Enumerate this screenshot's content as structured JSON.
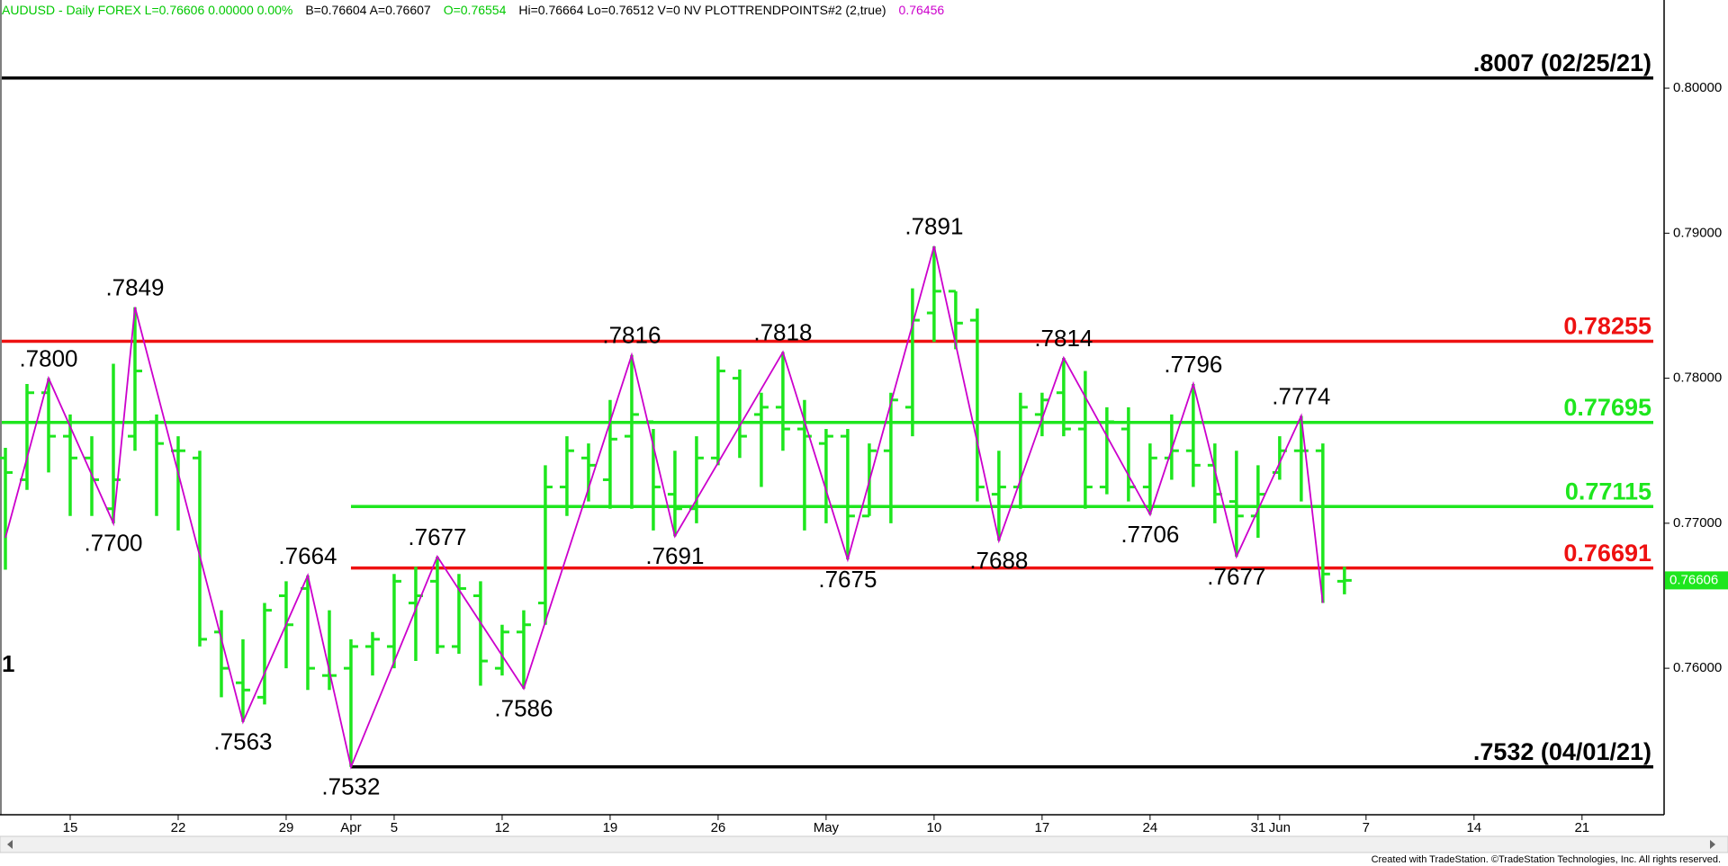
{
  "header": [
    {
      "text": "AUDUSD - Daily  FOREX  L=0.76606  0.00000   0.00%",
      "color": "#00c800"
    },
    {
      "text": "B=0.76604  A=0.76607",
      "color": "#000000"
    },
    {
      "text": "O=0.76554",
      "color": "#00c800"
    },
    {
      "text": "Hi=0.76664  Lo=0.76512  V=0  NV  PLOTTRENDPOINTS#2 (2,true)",
      "color": "#000000"
    },
    {
      "text": "0.76456",
      "color": "#cc00cc"
    }
  ],
  "chart_data": {
    "type": "ohlc",
    "color": "#1ee61e",
    "x": [
      0,
      1,
      2,
      3,
      4,
      5,
      6,
      7,
      8,
      9,
      10,
      11,
      12,
      13,
      14,
      15,
      16,
      17,
      18,
      19,
      20,
      21,
      22,
      23,
      24,
      25,
      26,
      27,
      28,
      29,
      30,
      31,
      32,
      33,
      34,
      35,
      36,
      37,
      38,
      39,
      40,
      41,
      42,
      43,
      44,
      45,
      46,
      47,
      48,
      49,
      50,
      51,
      52,
      53,
      54,
      55,
      56,
      57,
      58,
      59,
      60,
      61,
      62
    ],
    "open": [
      0.7745,
      0.773,
      0.779,
      0.776,
      0.7745,
      0.771,
      0.776,
      0.777,
      0.775,
      0.7745,
      0.7625,
      0.759,
      0.758,
      0.765,
      0.7655,
      0.7595,
      0.76,
      0.7615,
      0.7615,
      0.7645,
      0.766,
      0.7615,
      0.765,
      0.76,
      0.7625,
      0.7645,
      0.7725,
      0.7745,
      0.773,
      0.776,
      0.777,
      0.772,
      0.771,
      0.7745,
      0.78,
      0.7775,
      0.778,
      0.7765,
      0.7755,
      0.776,
      0.7705,
      0.775,
      0.778,
      0.7845,
      0.786,
      0.784,
      0.772,
      0.7725,
      0.7775,
      0.779,
      0.7765,
      0.7725,
      0.7765,
      0.7725,
      0.7745,
      0.775,
      0.774,
      0.7715,
      0.7705,
      0.7735,
      0.775,
      0.775,
      0.766
    ],
    "high": [
      0.7752,
      0.7796,
      0.78,
      0.7775,
      0.776,
      0.781,
      0.7849,
      0.7775,
      0.776,
      0.775,
      0.764,
      0.762,
      0.7645,
      0.766,
      0.7664,
      0.764,
      0.762,
      0.7625,
      0.7665,
      0.767,
      0.7677,
      0.7665,
      0.766,
      0.763,
      0.764,
      0.774,
      0.776,
      0.7755,
      0.7785,
      0.7816,
      0.7765,
      0.775,
      0.776,
      0.7815,
      0.7806,
      0.779,
      0.7818,
      0.7785,
      0.7765,
      0.7765,
      0.7755,
      0.779,
      0.7862,
      0.7891,
      0.786,
      0.7848,
      0.775,
      0.779,
      0.779,
      0.7814,
      0.7805,
      0.778,
      0.778,
      0.7755,
      0.7775,
      0.7796,
      0.7755,
      0.775,
      0.774,
      0.776,
      0.7774,
      0.7755,
      0.767
    ],
    "low": [
      0.7668,
      0.7723,
      0.7735,
      0.7705,
      0.7705,
      0.77,
      0.775,
      0.7705,
      0.7695,
      0.7615,
      0.758,
      0.7563,
      0.7575,
      0.76,
      0.7585,
      0.7585,
      0.7532,
      0.7595,
      0.76,
      0.7605,
      0.761,
      0.761,
      0.7588,
      0.7595,
      0.7586,
      0.763,
      0.7705,
      0.7715,
      0.771,
      0.771,
      0.7695,
      0.7691,
      0.77,
      0.774,
      0.7745,
      0.7725,
      0.775,
      0.7695,
      0.77,
      0.7675,
      0.7705,
      0.77,
      0.776,
      0.7825,
      0.782,
      0.7715,
      0.7688,
      0.771,
      0.776,
      0.776,
      0.771,
      0.772,
      0.7715,
      0.7706,
      0.773,
      0.7725,
      0.77,
      0.7677,
      0.769,
      0.773,
      0.7715,
      0.7645,
      0.7651
    ],
    "close": [
      0.7735,
      0.779,
      0.776,
      0.7745,
      0.773,
      0.773,
      0.7805,
      0.7755,
      0.775,
      0.762,
      0.76,
      0.7585,
      0.764,
      0.763,
      0.76,
      0.7595,
      0.7615,
      0.762,
      0.766,
      0.765,
      0.7615,
      0.7655,
      0.7605,
      0.7625,
      0.763,
      0.7725,
      0.775,
      0.774,
      0.7758,
      0.7775,
      0.7725,
      0.771,
      0.7745,
      0.7805,
      0.776,
      0.778,
      0.7765,
      0.776,
      0.776,
      0.7705,
      0.775,
      0.7785,
      0.784,
      0.786,
      0.7838,
      0.7725,
      0.7725,
      0.778,
      0.7785,
      0.7765,
      0.7725,
      0.777,
      0.7725,
      0.7745,
      0.775,
      0.774,
      0.772,
      0.7705,
      0.772,
      0.775,
      0.775,
      0.7665,
      0.76606
    ],
    "xlim": [
      -0.25,
      76.8
    ],
    "xticks": [
      {
        "value": 3,
        "label": "15"
      },
      {
        "value": 8,
        "label": "22"
      },
      {
        "value": 13,
        "label": "29"
      },
      {
        "value": 16,
        "label": "Apr"
      },
      {
        "value": 18,
        "label": "5"
      },
      {
        "value": 23,
        "label": "12"
      },
      {
        "value": 28,
        "label": "19"
      },
      {
        "value": 33,
        "label": "26"
      },
      {
        "value": 38,
        "label": "May"
      },
      {
        "value": 43,
        "label": "10"
      },
      {
        "value": 48,
        "label": "17"
      },
      {
        "value": 53,
        "label": "24"
      },
      {
        "value": 58,
        "label": "31"
      },
      {
        "value": 59,
        "label": "Jun"
      },
      {
        "value": 63,
        "label": "7"
      },
      {
        "value": 68,
        "label": "14"
      },
      {
        "value": 73,
        "label": "21"
      }
    ],
    "ylim": [
      0.7499,
      0.80608
    ],
    "yticks": [
      {
        "value": 0.8,
        "label": "0.80000"
      },
      {
        "value": 0.79,
        "label": "0.79000"
      },
      {
        "value": 0.78,
        "label": "0.78000"
      },
      {
        "value": 0.77,
        "label": "0.77000"
      },
      {
        "value": 0.76,
        "label": "0.76000"
      }
    ],
    "last_price": {
      "value": 0.76606,
      "label": "0.76606",
      "color": "#1ee61e"
    },
    "trend_points": {
      "color": "#cc00cc",
      "x": [
        0,
        2,
        5,
        6,
        11,
        14,
        16,
        20,
        24,
        29,
        31,
        36,
        39,
        43,
        46,
        49,
        53,
        55,
        57,
        60,
        61
      ],
      "values": [
        0.769,
        0.78,
        0.77,
        0.7849,
        0.7563,
        0.7664,
        0.7532,
        0.7677,
        0.7586,
        0.7816,
        0.7691,
        0.7818,
        0.7675,
        0.7891,
        0.7688,
        0.7814,
        0.7706,
        0.7796,
        0.7677,
        0.7774,
        0.7645
      ],
      "value_labels": [
        null,
        ".7800",
        ".7700",
        ".7849",
        ".7563",
        ".7664",
        ".7532",
        ".7677",
        ".7586",
        ".7816",
        ".7691",
        ".7818",
        ".7675",
        ".7891",
        ".7688",
        ".7814",
        ".7706",
        ".7796",
        ".7677",
        ".7774",
        null
      ]
    },
    "levels": [
      {
        "value": 0.8007,
        "label": ".8007 (02/25/21)",
        "color": "#000000"
      },
      {
        "value": 0.78255,
        "label": "0.78255",
        "color": "#ee1111"
      },
      {
        "value": 0.77695,
        "label": "0.77695",
        "color": "#1ee61e"
      },
      {
        "value": 0.77115,
        "label": "0.77115",
        "color": "#1ee61e",
        "start": 16
      },
      {
        "value": 0.76691,
        "label": "0.76691",
        "color": "#ee1111",
        "start": 16
      },
      {
        "value": 0.7532,
        "label": ".7532 (04/01/21)",
        "color": "#000000",
        "start": 16
      }
    ],
    "annotations": [
      "1"
    ]
  },
  "footer": "Created with TradeStation. ©TradeStation Technologies, Inc. All rights reserved."
}
